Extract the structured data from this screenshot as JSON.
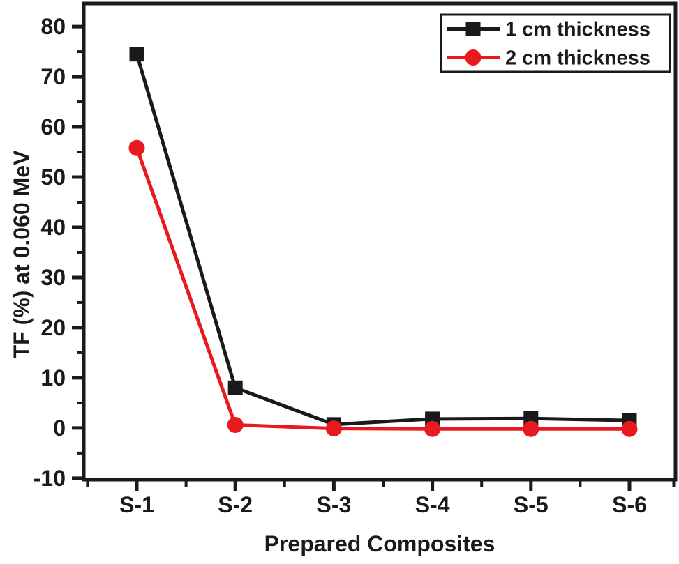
{
  "chart_data": {
    "type": "line",
    "title": "",
    "xlabel": "Prepared Composites",
    "ylabel": "TF (%) at 0.060 MeV",
    "categories": [
      "S-1",
      "S-2",
      "S-3",
      "S-4",
      "S-5",
      "S-6"
    ],
    "series": [
      {
        "name": "1 cm thickness",
        "color": "#1a1a1a",
        "marker": "square",
        "values": [
          74.5,
          8.0,
          0.7,
          1.8,
          1.9,
          1.5
        ]
      },
      {
        "name": "2 cm thickness",
        "color": "#e8191f",
        "marker": "circle",
        "values": [
          55.8,
          0.6,
          -0.1,
          -0.2,
          -0.2,
          -0.2
        ]
      }
    ],
    "ylim": [
      -10.3,
      84.6
    ],
    "yticks_major": [
      -10,
      0,
      10,
      20,
      30,
      40,
      50,
      60,
      70,
      80
    ],
    "ytick_minor_step": 5,
    "grid": false,
    "legend_position": "top-right",
    "axis_color": "#1a1a1a",
    "background": "#ffffff"
  }
}
